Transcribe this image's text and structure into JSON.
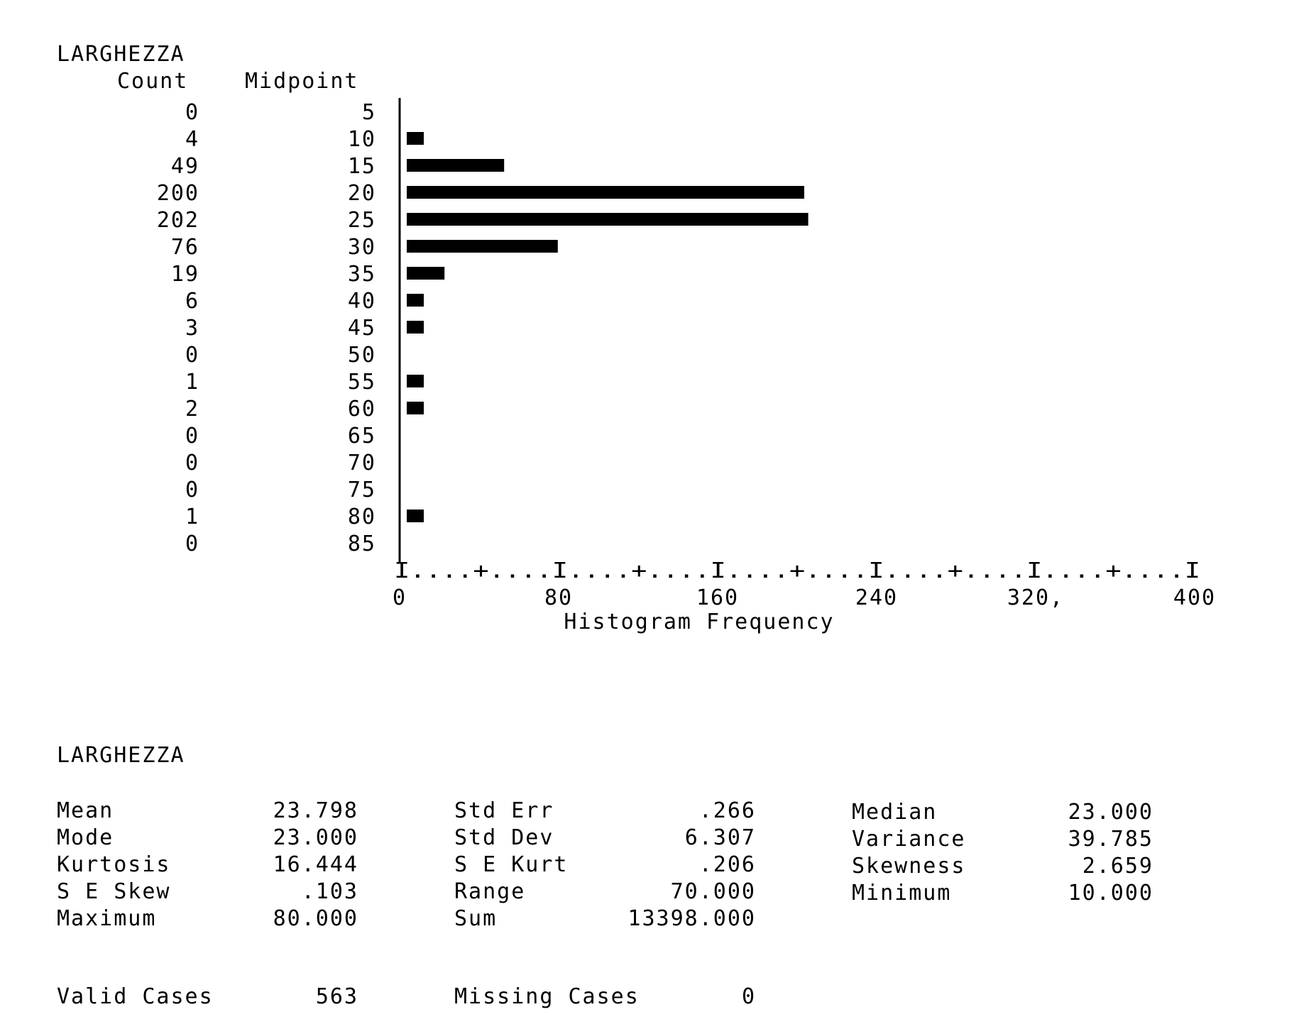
{
  "chart_data": {
    "type": "bar",
    "orientation": "horizontal",
    "title": "LARGHEZZA",
    "count_header": "Count",
    "midpoint_header": "Midpoint",
    "xlabel": "Histogram Frequency",
    "xlim": [
      0,
      400
    ],
    "x_tick_labels": [
      "0",
      "80",
      "160",
      "240",
      "320,",
      "400"
    ],
    "axis_line": "I....+....I....+....I....+....I....+....I....+....I",
    "categories": [
      5,
      10,
      15,
      20,
      25,
      30,
      35,
      40,
      45,
      50,
      55,
      60,
      65,
      70,
      75,
      80,
      85
    ],
    "values": [
      0,
      4,
      49,
      200,
      202,
      76,
      19,
      6,
      3,
      0,
      1,
      2,
      0,
      0,
      0,
      1,
      0
    ],
    "bar_color": "#000000"
  },
  "stats": {
    "title": "LARGHEZZA",
    "col1": [
      {
        "label": "Mean",
        "value": "23.798"
      },
      {
        "label": "Mode",
        "value": "23.000"
      },
      {
        "label": "Kurtosis",
        "value": "16.444"
      },
      {
        "label": "S E Skew",
        "value": ".103"
      },
      {
        "label": "Maximum",
        "value": "80.000"
      }
    ],
    "col2": [
      {
        "label": "Std Err",
        "value": ".266"
      },
      {
        "label": "Std Dev",
        "value": "6.307"
      },
      {
        "label": "S E Kurt",
        "value": ".206"
      },
      {
        "label": "Range",
        "value": "70.000"
      },
      {
        "label": "Sum",
        "value": "13398.000"
      }
    ],
    "col3": [
      {
        "label": "Median",
        "value": "23.000"
      },
      {
        "label": "Variance",
        "value": "39.785"
      },
      {
        "label": "Skewness",
        "value": "2.659"
      },
      {
        "label": "Minimum",
        "value": "10.000"
      }
    ]
  },
  "cases": {
    "valid_label": "Valid Cases",
    "valid_value": "563",
    "missing_label": "Missing Cases",
    "missing_value": "0"
  }
}
